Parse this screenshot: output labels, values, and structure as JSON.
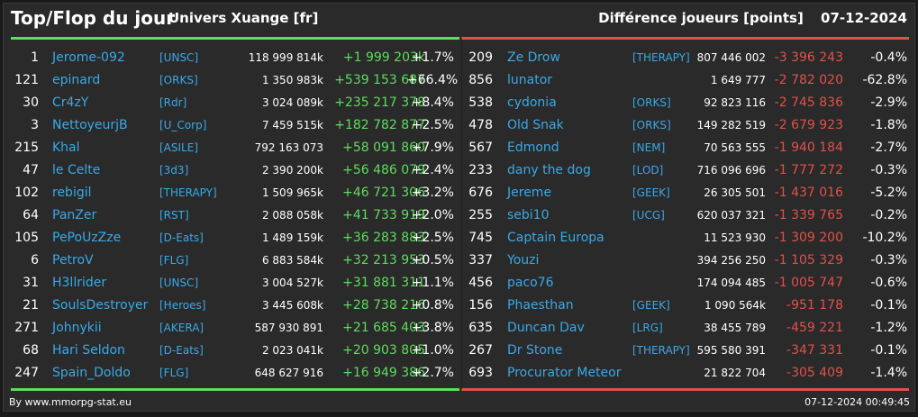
{
  "header": {
    "title": "Top/Flop du jour",
    "universe": "Univers Xuange [fr]",
    "subtitle": "Différence joueurs [points]",
    "date": "07-12-2024"
  },
  "colors": {
    "positive": "#5edc5e",
    "negative": "#e2504a",
    "player_link": "#39a9e8",
    "background": "#2a2a2a"
  },
  "top": [
    {
      "rank": "1",
      "name": "Jerome-092",
      "guild": "[UNSC]",
      "points": "118 999 814k",
      "diff": "+1 999 203k",
      "pct": "+1.7%"
    },
    {
      "rank": "121",
      "name": "epinard",
      "guild": "[ORKS]",
      "points": "1 350 983k",
      "diff": "+539 153 687",
      "pct": "+66.4%"
    },
    {
      "rank": "30",
      "name": "Cr4zY",
      "guild": "[Rdr]",
      "points": "3 024 089k",
      "diff": "+235 217 378",
      "pct": "+8.4%"
    },
    {
      "rank": "3",
      "name": "NettoyeurjB",
      "guild": "[U_Corp]",
      "points": "7 459 515k",
      "diff": "+182 782 877",
      "pct": "+2.5%"
    },
    {
      "rank": "215",
      "name": "Khal",
      "guild": "[ASILE]",
      "points": "792 163 073",
      "diff": "+58 091 860",
      "pct": "+7.9%"
    },
    {
      "rank": "47",
      "name": "le Celte",
      "guild": "[3d3]",
      "points": "2 390 200k",
      "diff": "+56 486 079",
      "pct": "+2.4%"
    },
    {
      "rank": "102",
      "name": "rebigil",
      "guild": "[THERAPY]",
      "points": "1 509 965k",
      "diff": "+46 721 306",
      "pct": "+3.2%"
    },
    {
      "rank": "64",
      "name": "PanZer",
      "guild": "[RST]",
      "points": "2 088 058k",
      "diff": "+41 733 919",
      "pct": "+2.0%"
    },
    {
      "rank": "105",
      "name": "PePoUzZze",
      "guild": "[D-Eats]",
      "points": "1 489 159k",
      "diff": "+36 283 883",
      "pct": "+2.5%"
    },
    {
      "rank": "6",
      "name": "PetroV",
      "guild": "[FLG]",
      "points": "6 883 584k",
      "diff": "+32 213 953",
      "pct": "+0.5%"
    },
    {
      "rank": "31",
      "name": "H3llrider",
      "guild": "[UNSC]",
      "points": "3 004 527k",
      "diff": "+31 881 311",
      "pct": "+1.1%"
    },
    {
      "rank": "21",
      "name": "SoulsDestroyer",
      "guild": "[Heroes]",
      "points": "3 445 608k",
      "diff": "+28 738 216",
      "pct": "+0.8%"
    },
    {
      "rank": "271",
      "name": "Johnykii",
      "guild": "[AKERA]",
      "points": "587 930 891",
      "diff": "+21 685 403",
      "pct": "+3.8%"
    },
    {
      "rank": "68",
      "name": "Hari Seldon",
      "guild": "[D-Eats]",
      "points": "2 023 041k",
      "diff": "+20 903 805",
      "pct": "+1.0%"
    },
    {
      "rank": "247",
      "name": "Spain_Doldo",
      "guild": "[FLG]",
      "points": "648 627 916",
      "diff": "+16 949 386",
      "pct": "+2.7%"
    }
  ],
  "flop": [
    {
      "rank": "209",
      "name": "Ze Drow",
      "guild": "[THERAPY]",
      "points": "807 446 002",
      "diff": "-3 396 243",
      "pct": "-0.4%"
    },
    {
      "rank": "856",
      "name": "lunator",
      "guild": "",
      "points": "1 649 777",
      "diff": "-2 782 020",
      "pct": "-62.8%"
    },
    {
      "rank": "538",
      "name": "cydonia",
      "guild": "[ORKS]",
      "points": "92 823 116",
      "diff": "-2 745 836",
      "pct": "-2.9%"
    },
    {
      "rank": "478",
      "name": "Old Snak",
      "guild": "[ORKS]",
      "points": "149 282 519",
      "diff": "-2 679 923",
      "pct": "-1.8%"
    },
    {
      "rank": "567",
      "name": "Edmond",
      "guild": "[NEM]",
      "points": "70 563 555",
      "diff": "-1 940 184",
      "pct": "-2.7%"
    },
    {
      "rank": "233",
      "name": "dany the dog",
      "guild": "[LOD]",
      "points": "716 096 696",
      "diff": "-1 777 272",
      "pct": "-0.3%"
    },
    {
      "rank": "676",
      "name": "Jereme",
      "guild": "[GEEK]",
      "points": "26 305 501",
      "diff": "-1 437 016",
      "pct": "-5.2%"
    },
    {
      "rank": "255",
      "name": "sebi10",
      "guild": "[UCG]",
      "points": "620 037 321",
      "diff": "-1 339 765",
      "pct": "-0.2%"
    },
    {
      "rank": "745",
      "name": "Captain Europa",
      "guild": "",
      "points": "11 523 930",
      "diff": "-1 309 200",
      "pct": "-10.2%"
    },
    {
      "rank": "337",
      "name": "Youzi",
      "guild": "",
      "points": "394 256 250",
      "diff": "-1 105 329",
      "pct": "-0.3%"
    },
    {
      "rank": "456",
      "name": "paco76",
      "guild": "",
      "points": "174 094 485",
      "diff": "-1 005 747",
      "pct": "-0.6%"
    },
    {
      "rank": "156",
      "name": "Phaesthan",
      "guild": "[GEEK]",
      "points": "1 090 564k",
      "diff": "-951 178",
      "pct": "-0.1%"
    },
    {
      "rank": "635",
      "name": "Duncan Dav",
      "guild": "[LRG]",
      "points": "38 455 789",
      "diff": "-459 221",
      "pct": "-1.2%"
    },
    {
      "rank": "267",
      "name": "Dr Stone",
      "guild": "[THERAPY]",
      "points": "595 580 391",
      "diff": "-347 331",
      "pct": "-0.1%"
    },
    {
      "rank": "693",
      "name": "Procurator Meteor",
      "guild": "",
      "points": "21 822 704",
      "diff": "-305 409",
      "pct": "-1.4%"
    }
  ],
  "footer": {
    "by": "By www.mmorpg-stat.eu",
    "timestamp": "07-12-2024 00:49:45"
  }
}
